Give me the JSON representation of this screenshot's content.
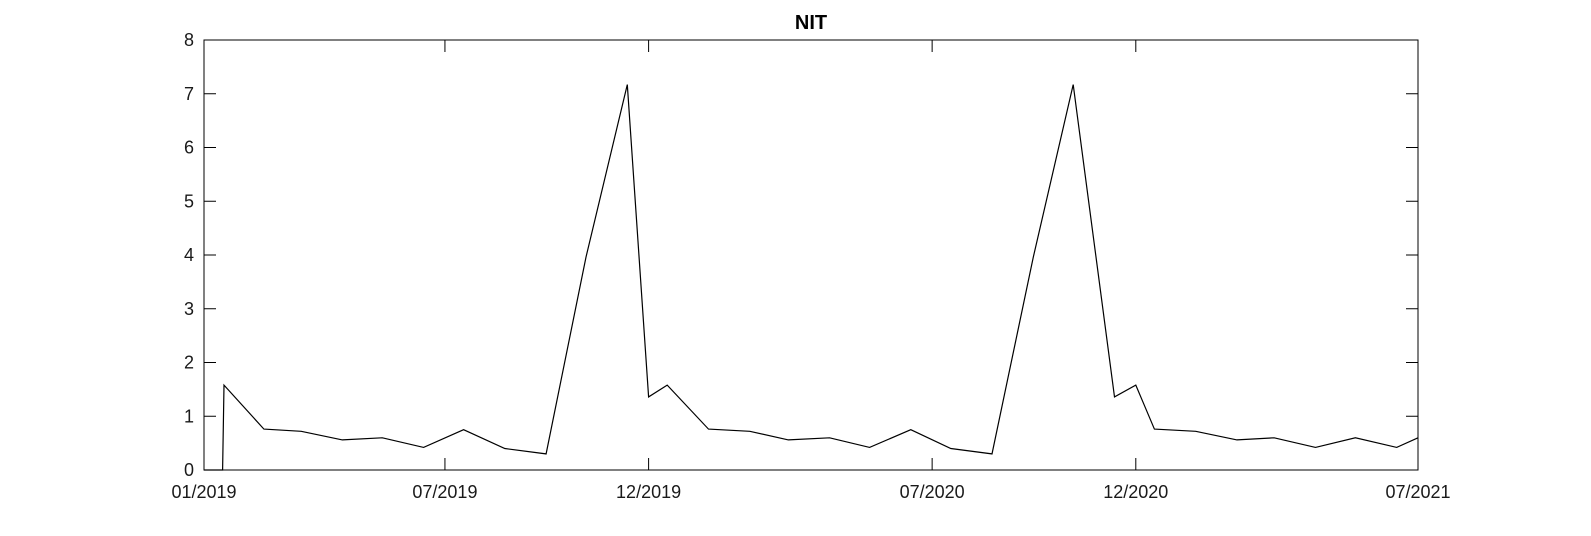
{
  "chart_data": {
    "type": "line",
    "title": "NIT",
    "xlabel": "",
    "ylabel": "",
    "x_ticks": [
      "01/2019",
      "07/2019",
      "12/2019",
      "07/2020",
      "12/2020",
      "07/2021"
    ],
    "x_tick_days": [
      0,
      181,
      334,
      547,
      700,
      912
    ],
    "x_range_days": [
      0,
      912
    ],
    "y_ticks": [
      "0",
      "1",
      "2",
      "3",
      "4",
      "5",
      "6",
      "7",
      "8"
    ],
    "ylim": [
      0,
      8
    ],
    "grid": false,
    "series": [
      {
        "x": [
          "2019-01-01",
          "2019-01-15",
          "2019-01-16",
          "2019-02-15",
          "2019-03-15",
          "2019-04-15",
          "2019-05-15",
          "2019-06-15",
          "2019-07-15",
          "2019-08-15",
          "2019-09-15",
          "2019-10-15",
          "2019-11-15",
          "2019-12-01",
          "2019-12-15",
          "2020-01-15",
          "2020-02-15",
          "2020-03-15",
          "2020-04-15",
          "2020-05-15",
          "2020-06-15",
          "2020-07-15",
          "2020-08-15",
          "2020-09-15",
          "2020-10-15",
          "2020-11-15",
          "2020-12-01",
          "2020-12-15",
          "2021-01-15",
          "2021-02-15",
          "2021-03-15",
          "2021-04-15",
          "2021-05-15",
          "2021-06-15",
          "2021-07-01"
        ],
        "y": [
          0,
          0,
          1.58,
          0.76,
          0.72,
          0.56,
          0.6,
          0.42,
          0.75,
          0.4,
          0.3,
          3.96,
          7.17,
          1.36,
          1.58,
          0.76,
          0.72,
          0.56,
          0.6,
          0.42,
          0.75,
          0.4,
          0.3,
          3.96,
          7.17,
          1.36,
          1.58,
          0.76,
          0.72,
          0.56,
          0.6,
          0.42,
          0.6,
          0.42,
          0.6
        ]
      }
    ]
  }
}
